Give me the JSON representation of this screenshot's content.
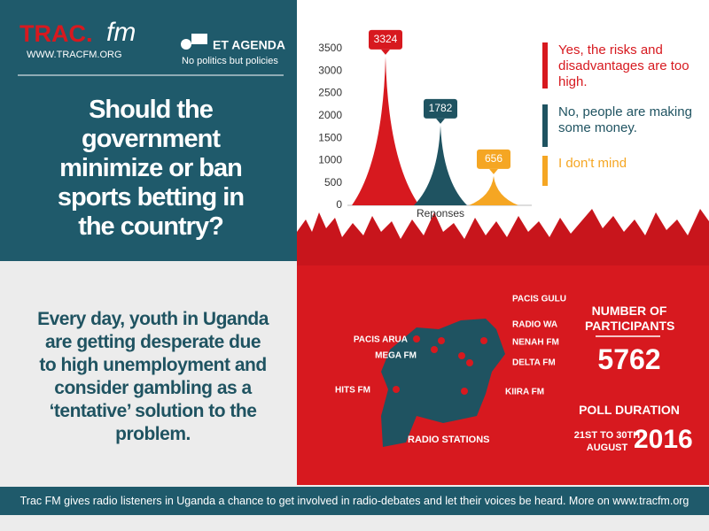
{
  "header": {
    "logo_main": "TRAC.",
    "logo_fm": "fm",
    "url": "WWW.TRACFM.ORG",
    "partner": "ET AGENDA",
    "tagline": "No politics but policies"
  },
  "question": "Should the government minimize or ban sports betting in the country?",
  "chart_data": {
    "type": "bar",
    "x_label": "Reponses",
    "categories": [
      "Yes, the risks and disadvantages are too high.",
      "No, people are making some money.",
      "I don't mind"
    ],
    "values": [
      3324,
      1782,
      656
    ],
    "colors": [
      "#d7191f",
      "#1f5361",
      "#f5a623"
    ],
    "ylim": [
      0,
      3500
    ],
    "yticks": [
      0,
      500,
      1000,
      1500,
      2000,
      2500,
      3000,
      3500
    ],
    "grid": false
  },
  "intro": "Every day, youth in Uganda are getting desperate due to high unemployment and consider gambling as a ‘tentative’ solution to the problem.",
  "stations": {
    "title": "RADIO STATIONS",
    "items": [
      "PACIS GULU",
      "RADIO WA",
      "NENAH FM",
      "DELTA FM",
      "KIIRA FM",
      "PACIS ARUA",
      "MEGA FM",
      "HITS FM"
    ]
  },
  "participants": {
    "label": "NUMBER OF PARTICIPANTS",
    "value": 5762
  },
  "poll": {
    "label": "POLL DURATION",
    "dates": "21ST TO 30TH AUGUST",
    "year": 2016
  },
  "footer": "Trac FM gives radio listeners in Uganda a chance to get involved in radio-debates and let their voices be heard. More on www.tracfm.org"
}
